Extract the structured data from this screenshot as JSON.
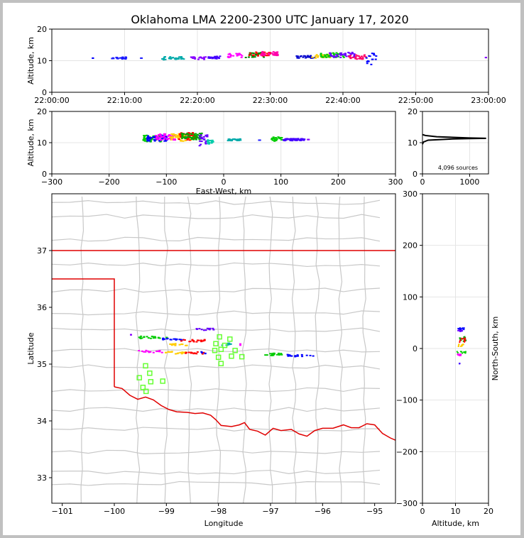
{
  "title": "Oklahoma LMA 2200-2300 UTC January 17, 2020",
  "colors": {
    "axis": "#000000",
    "grid": "#e4e4e4",
    "state_border": "#e00000",
    "county": "#c8c8c8",
    "station": "#66ff33",
    "frame": "#c0c0c0"
  },
  "chart_data": [
    {
      "name": "altitude-time",
      "type": "scatter",
      "ylabel": "Altitude, km",
      "ylim": [
        0,
        20
      ],
      "yticks": [
        "0",
        "10",
        "20"
      ],
      "xticks": [
        "22:00:00",
        "22:10:00",
        "22:20:00",
        "22:30:00",
        "22:40:00",
        "22:50:00",
        "23:00:00"
      ],
      "x_minutes_range": [
        0,
        60
      ],
      "clusters": [
        {
          "t": [
            5.5,
            5.5
          ],
          "z": [
            10.8,
            10.8
          ],
          "c": "#0000ff"
        },
        {
          "t": [
            8,
            10.2
          ],
          "z": [
            10.5,
            11.2
          ],
          "c": "#1a1aff"
        },
        {
          "t": [
            12,
            12.3
          ],
          "z": [
            10.8,
            10.8
          ],
          "c": "#2222ff"
        },
        {
          "t": [
            15,
            18
          ],
          "z": [
            10.3,
            11.3
          ],
          "c": "#00aaaa"
        },
        {
          "t": [
            19,
            21
          ],
          "z": [
            10.4,
            11.2
          ],
          "c": "#8800ff"
        },
        {
          "t": [
            21,
            23
          ],
          "z": [
            10.6,
            11.4
          ],
          "c": "#4400ff"
        },
        {
          "t": [
            24,
            26
          ],
          "z": [
            11,
            12.3
          ],
          "c": "#ff00ff"
        },
        {
          "t": [
            26.5,
            29
          ],
          "z": [
            11,
            12.6
          ],
          "c": "#008800"
        },
        {
          "t": [
            27,
            30
          ],
          "z": [
            11.5,
            12.8
          ],
          "c": "#ff0000"
        },
        {
          "t": [
            28.5,
            31
          ],
          "z": [
            11.6,
            12.9
          ],
          "c": "#ff00aa"
        },
        {
          "t": [
            33.5,
            36
          ],
          "z": [
            10.8,
            11.6
          ],
          "c": "#0000cc"
        },
        {
          "t": [
            35.5,
            38.5
          ],
          "z": [
            10.8,
            12.0
          ],
          "c": "#ffcc00"
        },
        {
          "t": [
            36.5,
            40
          ],
          "z": [
            11,
            12.5
          ],
          "c": "#00cc00"
        },
        {
          "t": [
            38,
            41.5
          ],
          "z": [
            11,
            12.7
          ],
          "c": "#6600ff"
        },
        {
          "t": [
            40.5,
            43
          ],
          "z": [
            10.5,
            11.8
          ],
          "c": "#ff0066"
        },
        {
          "t": [
            43,
            44.6
          ],
          "z": [
            8.8,
            12.8
          ],
          "c": "#0000ff"
        },
        {
          "t": [
            59.5,
            59.5
          ],
          "z": [
            11,
            11
          ],
          "c": "#8800ff"
        }
      ]
    },
    {
      "name": "altitude-eastwest",
      "type": "scatter",
      "xlabel": "East-West, km",
      "ylabel": "Altitude, km",
      "xlim": [
        -300,
        300
      ],
      "ylim": [
        0,
        20
      ],
      "xticks": [
        "−300",
        "−200",
        "−100",
        "0",
        "100",
        "200",
        "300"
      ],
      "yticks": [
        "0",
        "10",
        "20"
      ],
      "clusters": [
        {
          "x": [
            -142,
            -110
          ],
          "z": [
            10.3,
            12.4
          ],
          "c": "#00cc00"
        },
        {
          "x": [
            -135,
            -100
          ],
          "z": [
            10.5,
            12.5
          ],
          "c": "#0000ff"
        },
        {
          "x": [
            -120,
            -85
          ],
          "z": [
            10.8,
            12.8
          ],
          "c": "#ff00ff"
        },
        {
          "x": [
            -95,
            -55
          ],
          "z": [
            10.5,
            13
          ],
          "c": "#ffcc00"
        },
        {
          "x": [
            -80,
            -50
          ],
          "z": [
            10.8,
            13.2
          ],
          "c": "#ff0000"
        },
        {
          "x": [
            -75,
            -40
          ],
          "z": [
            11,
            13
          ],
          "c": "#00aa00"
        },
        {
          "x": [
            -45,
            -30
          ],
          "z": [
            9,
            12.5
          ],
          "c": "#6600ff"
        },
        {
          "x": [
            -30,
            -18
          ],
          "z": [
            9.6,
            11.2
          ],
          "c": "#00ccaa"
        },
        {
          "x": [
            5,
            28
          ],
          "z": [
            10.6,
            11.2
          ],
          "c": "#00aaaa"
        },
        {
          "x": [
            60,
            62
          ],
          "z": [
            10.8,
            10.8
          ],
          "c": "#2222ff"
        },
        {
          "x": [
            82,
            100
          ],
          "z": [
            10.5,
            11.8
          ],
          "c": "#00cc00"
        },
        {
          "x": [
            100,
            140
          ],
          "z": [
            10.6,
            11.3
          ],
          "c": "#4400ff"
        },
        {
          "x": [
            145,
            147
          ],
          "z": [
            11,
            11
          ],
          "c": "#8800ff"
        }
      ]
    },
    {
      "name": "altitude-histogram",
      "type": "line",
      "annotation": "4,096 sources",
      "xlim": [
        0,
        1400
      ],
      "ylim": [
        0,
        20
      ],
      "xticks": [
        "0",
        "1000"
      ],
      "yticks": [
        "0",
        "10",
        "20"
      ],
      "line": {
        "x": [
          0,
          20,
          120,
          650,
          1000,
          1350,
          1000,
          300,
          60,
          0
        ],
        "z": [
          9.5,
          10.2,
          10.8,
          11.2,
          11.3,
          11.4,
          11.5,
          11.9,
          12.3,
          12.6
        ]
      }
    },
    {
      "name": "plan-view-map",
      "type": "scatter",
      "xlabel": "Longitude",
      "ylabel": "Latitude",
      "xlim": [
        -101.2,
        -94.6
      ],
      "ylim": [
        32.55,
        38.0
      ],
      "xticks": [
        "−101",
        "−100",
        "−99",
        "−98",
        "−97",
        "−96",
        "−95"
      ],
      "yticks": [
        "33",
        "34",
        "35",
        "36",
        "37"
      ],
      "state_border_north": [
        [
          -101.2,
          37.0
        ],
        [
          -94.6,
          37.0
        ]
      ],
      "state_border_panhandle": [
        [
          -101.2,
          36.5
        ],
        [
          -100.0,
          36.5
        ],
        [
          -100.0,
          34.6
        ]
      ],
      "red_river": [
        [
          -100.0,
          34.6
        ],
        [
          -99.85,
          34.57
        ],
        [
          -99.7,
          34.45
        ],
        [
          -99.55,
          34.38
        ],
        [
          -99.4,
          34.42
        ],
        [
          -99.25,
          34.37
        ],
        [
          -99.1,
          34.27
        ],
        [
          -98.95,
          34.2
        ],
        [
          -98.8,
          34.16
        ],
        [
          -98.6,
          34.15
        ],
        [
          -98.45,
          34.13
        ],
        [
          -98.3,
          34.14
        ],
        [
          -98.15,
          34.1
        ],
        [
          -98.05,
          34.02
        ],
        [
          -97.95,
          33.92
        ],
        [
          -97.75,
          33.9
        ],
        [
          -97.6,
          33.93
        ],
        [
          -97.5,
          33.97
        ],
        [
          -97.4,
          33.85
        ],
        [
          -97.25,
          33.82
        ],
        [
          -97.1,
          33.75
        ],
        [
          -96.95,
          33.87
        ],
        [
          -96.8,
          33.83
        ],
        [
          -96.6,
          33.85
        ],
        [
          -96.45,
          33.77
        ],
        [
          -96.3,
          33.73
        ],
        [
          -96.15,
          33.83
        ],
        [
          -96.0,
          33.87
        ],
        [
          -95.8,
          33.87
        ],
        [
          -95.6,
          33.93
        ],
        [
          -95.45,
          33.88
        ],
        [
          -95.3,
          33.88
        ],
        [
          -95.15,
          33.95
        ],
        [
          -95.0,
          33.93
        ],
        [
          -94.85,
          33.78
        ],
        [
          -94.7,
          33.7
        ],
        [
          -94.6,
          33.66
        ]
      ],
      "county_lat_lines": [
        37.85,
        37.6,
        37.2,
        36.75,
        36.3,
        35.9,
        35.6,
        35.25,
        34.95,
        34.55,
        34.2,
        33.85,
        33.45,
        33.1,
        32.9
      ],
      "county_lon_lines": [
        -100.6,
        -99.55,
        -99.0,
        -98.55,
        -98.0,
        -97.5,
        -97.0,
        -96.55,
        -96.1,
        -95.65,
        -95.2
      ],
      "stations": [
        [
          -97.98,
          35.48
        ],
        [
          -97.78,
          35.44
        ],
        [
          -98.05,
          35.36
        ],
        [
          -97.88,
          35.33
        ],
        [
          -98.07,
          35.24
        ],
        [
          -97.68,
          35.24
        ],
        [
          -97.95,
          35.26
        ],
        [
          -98.0,
          35.12
        ],
        [
          -97.75,
          35.14
        ],
        [
          -97.55,
          35.13
        ],
        [
          -97.95,
          35.01
        ],
        [
          -99.4,
          34.97
        ],
        [
          -99.32,
          34.84
        ],
        [
          -99.52,
          34.76
        ],
        [
          -99.3,
          34.69
        ],
        [
          -99.07,
          34.7
        ],
        [
          -99.45,
          34.59
        ],
        [
          -99.39,
          34.52
        ]
      ],
      "flashes": [
        {
          "lon": [
            -99.55,
            -99.0
          ],
          "lat": [
            35.47,
            35.47
          ],
          "c": "#00cc00"
        },
        {
          "lon": [
            -99.1,
            -98.7
          ],
          "lat": [
            35.44,
            35.44
          ],
          "c": "#0000ff"
        },
        {
          "lon": [
            -98.95,
            -98.6
          ],
          "lat": [
            35.34,
            35.34
          ],
          "c": "#ffcc00"
        },
        {
          "lon": [
            -98.75,
            -98.25
          ],
          "lat": [
            35.41,
            35.41
          ],
          "c": "#ff0000"
        },
        {
          "lon": [
            -98.45,
            -98.1
          ],
          "lat": [
            35.61,
            35.61
          ],
          "c": "#6600ff"
        },
        {
          "lon": [
            -99.55,
            -99.1
          ],
          "lat": [
            35.22,
            35.22
          ],
          "c": "#ff00ff"
        },
        {
          "lon": [
            -99.1,
            -98.65
          ],
          "lat": [
            35.2,
            35.2
          ],
          "c": "#ffcc00"
        },
        {
          "lon": [
            -98.65,
            -98.3
          ],
          "lat": [
            35.2,
            35.2
          ],
          "c": "#ff0000"
        },
        {
          "lon": [
            -98.35,
            -98.25
          ],
          "lat": [
            35.2,
            35.2
          ],
          "c": "#0000ff"
        },
        {
          "lon": [
            -97.95,
            -97.7
          ],
          "lat": [
            35.35,
            35.35
          ],
          "c": "#00aaaa"
        },
        {
          "lon": [
            -97.15,
            -96.7
          ],
          "lat": [
            35.17,
            35.17
          ],
          "c": "#00cc00"
        },
        {
          "lon": [
            -96.7,
            -96.2
          ],
          "lat": [
            35.15,
            35.15
          ],
          "c": "#0000ff"
        },
        {
          "lon": [
            -99.7,
            -99.7
          ],
          "lat": [
            35.51,
            35.51
          ],
          "c": "#8800ff"
        },
        {
          "lon": [
            -97.6,
            -97.6
          ],
          "lat": [
            35.35,
            35.35
          ],
          "c": "#ff00ff"
        }
      ]
    },
    {
      "name": "northsouth-altitude",
      "type": "scatter",
      "xlabel": "Altitude, km",
      "ylabel": "North-South, km",
      "xlim": [
        0,
        20
      ],
      "ylim": [
        -300,
        300
      ],
      "xticks": [
        "0",
        "10",
        "20"
      ],
      "yticks": [
        "−300",
        "−200",
        "−100",
        "0",
        "100",
        "200",
        "300"
      ],
      "clusters": [
        {
          "z": [
            9.5,
            12
          ],
          "y": [
            33,
            37
          ],
          "c": "#6600ff"
        },
        {
          "z": [
            10.5,
            12.5
          ],
          "y": [
            37,
            40
          ],
          "c": "#0000ff"
        },
        {
          "z": [
            10.5,
            13
          ],
          "y": [
            14,
            24
          ],
          "c": "#00aa00"
        },
        {
          "z": [
            11,
            12.8
          ],
          "y": [
            12,
            20
          ],
          "c": "#ff0000"
        },
        {
          "z": [
            10.6,
            12.4
          ],
          "y": [
            4,
            10
          ],
          "c": "#ffcc00"
        },
        {
          "z": [
            10,
            13
          ],
          "y": [
            -6,
            -9
          ],
          "c": "#00cc00"
        },
        {
          "z": [
            10.3,
            11.5
          ],
          "y": [
            -11,
            -14
          ],
          "c": "#ff00ff"
        },
        {
          "z": [
            11,
            11
          ],
          "y": [
            -29,
            -29
          ],
          "c": "#4400ff"
        }
      ]
    }
  ]
}
